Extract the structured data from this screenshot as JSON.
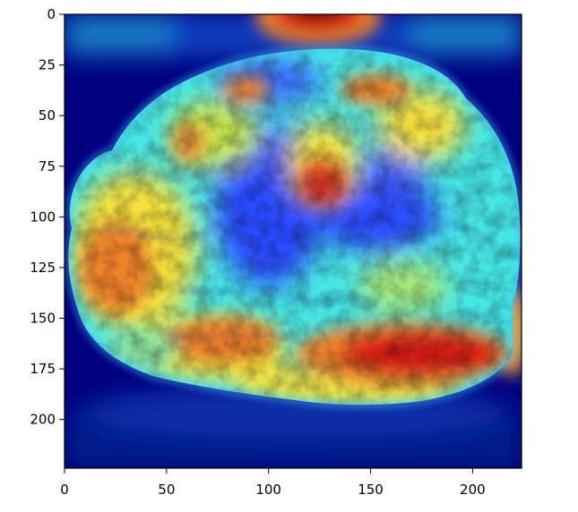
{
  "figure": {
    "colormap": "jet",
    "frame_color": "#000000",
    "background_color": "#ffffff"
  },
  "axes": {
    "x_ticks": [
      0,
      50,
      100,
      150,
      200
    ],
    "y_ticks": [
      0,
      25,
      50,
      75,
      100,
      125,
      150,
      175,
      200
    ],
    "x_range": [
      0,
      224
    ],
    "y_range": [
      0,
      224
    ],
    "y_inverted": true
  },
  "image": {
    "subject": "brain-heatmap-overlay",
    "colors": {
      "deep_blue": "#00007f",
      "blue": "#2a4cff",
      "cyan": "#46e6e6",
      "yellow": "#f5e13c",
      "orange": "#f0822a",
      "red": "#d21e14",
      "dark_red": "#7a0000"
    }
  }
}
